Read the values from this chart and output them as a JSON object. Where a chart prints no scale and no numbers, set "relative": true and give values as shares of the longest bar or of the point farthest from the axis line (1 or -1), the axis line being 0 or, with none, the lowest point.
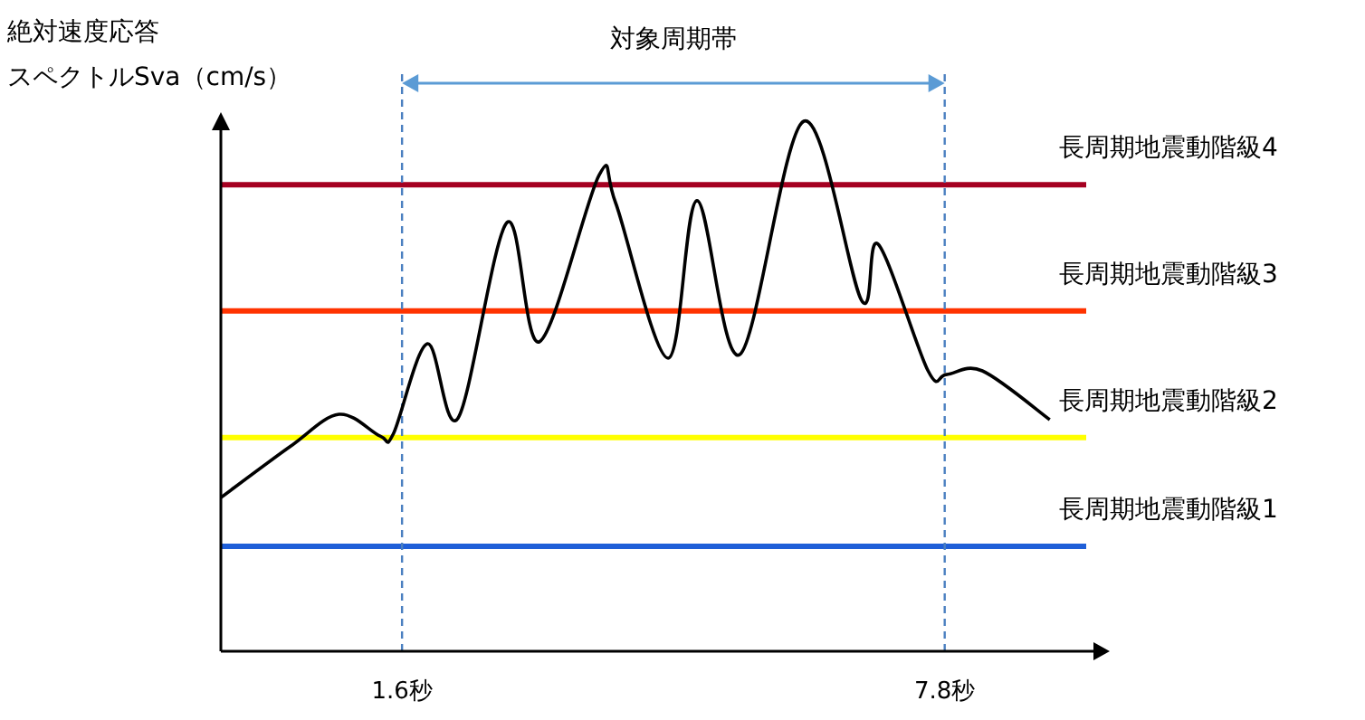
{
  "chart_data": {
    "type": "line",
    "relative": true,
    "ylabel": "絶対速度応答スペクトルSva（cm/s）",
    "annotations": [
      "対象周期帯"
    ],
    "color": "#000000",
    "line_style": "solid",
    "marker": "none",
    "legend": false,
    "grid": false,
    "x": [
      -0.47,
      0.32,
      0.88,
      1.35,
      1.5,
      1.89,
      2.24,
      2.8,
      3.17,
      3.85,
      4.04,
      4.64,
      4.97,
      5.46,
      6.19,
      6.85,
      7.04,
      7.61,
      7.82,
      8.23,
      9.0
    ],
    "values": [
      0.29,
      0.386,
      0.447,
      0.406,
      0.41,
      0.58,
      0.44,
      0.809,
      0.584,
      0.898,
      0.846,
      0.553,
      0.85,
      0.56,
      1.0,
      0.662,
      0.768,
      0.529,
      0.522,
      0.529,
      0.437
    ],
    "xlim": [
      -0.47,
      9.52
    ],
    "xticks": [
      {
        "value": 1.6,
        "label": "1.6秒"
      },
      {
        "value": 7.8,
        "label": "7.8秒"
      }
    ],
    "ref_lines": [
      {
        "axis": "y",
        "value": 0.88,
        "label": "長周期地震動階級4",
        "color": "#a50021"
      },
      {
        "axis": "y",
        "value": 0.642,
        "label": "長周期地震動階級3",
        "color": "#ff3300"
      },
      {
        "axis": "y",
        "value": 0.403,
        "label": "長周期地震動階級2",
        "color": "#ffff00"
      },
      {
        "axis": "y",
        "value": 0.198,
        "label": "長周期地震動階級1",
        "color": "#1f5fd8"
      },
      {
        "axis": "x",
        "value": 1.6,
        "label": null,
        "color": "#4a7fc0",
        "line_style": "dashed"
      },
      {
        "axis": "x",
        "value": 7.8,
        "label": null,
        "color": "#4a7fc0",
        "line_style": "dashed"
      }
    ]
  }
}
